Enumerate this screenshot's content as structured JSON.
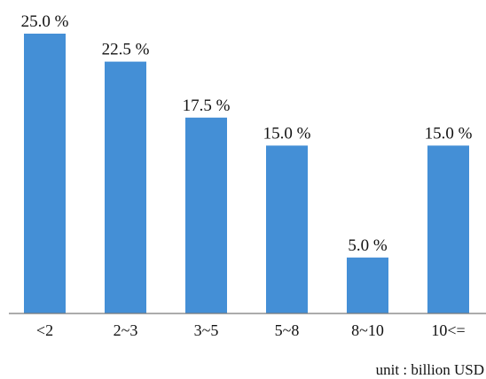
{
  "chart_data": {
    "type": "bar",
    "categories": [
      "<2",
      "2~3",
      "3~5",
      "5~8",
      "8~10",
      "10<="
    ],
    "values": [
      25.0,
      22.5,
      17.5,
      15.0,
      5.0,
      15.0
    ],
    "data_labels": [
      "25.0 %",
      "22.5 %",
      "17.5 %",
      "15.0 %",
      "5.0 %",
      "15.0 %"
    ],
    "title": "",
    "xlabel": "",
    "ylabel": "",
    "ylim": [
      0,
      25
    ],
    "grid": false,
    "legend": "none",
    "bar_color": "#448fd6",
    "axis_color": "#7a7a7a",
    "note": "unit : billion USD"
  }
}
